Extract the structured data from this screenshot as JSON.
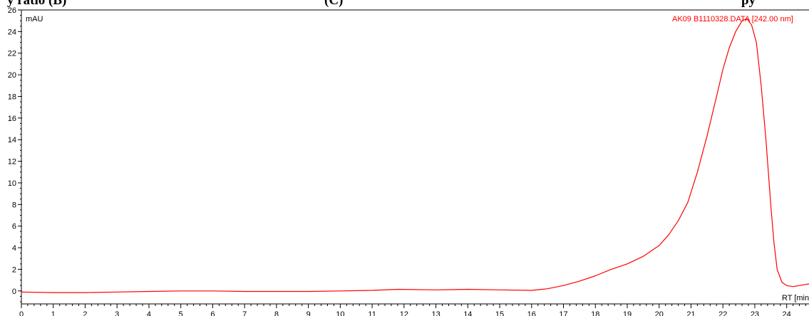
{
  "caption": {
    "left_text": "y ratio (B)",
    "mid_text": "(C)",
    "right_text": "py"
  },
  "chart_data": {
    "type": "line",
    "title": "",
    "xlabel": "RT [min]",
    "ylabel": "mAU",
    "xlim": [
      0,
      24.7
    ],
    "ylim": [
      -1.2,
      26
    ],
    "x_ticks": [
      0,
      1,
      2,
      3,
      4,
      5,
      6,
      7,
      8,
      9,
      10,
      11,
      12,
      13,
      14,
      15,
      16,
      17,
      18,
      19,
      20,
      21,
      22,
      23,
      24
    ],
    "y_ticks": [
      0,
      2,
      4,
      6,
      8,
      10,
      12,
      14,
      16,
      18,
      20,
      22,
      24,
      26
    ],
    "grid": false,
    "series": [
      {
        "name": "AK09 B1110328.DATA [242.00 nm]",
        "color": "#ff0000",
        "x": [
          0,
          1,
          2,
          3,
          4,
          5,
          6,
          7,
          8,
          9,
          10,
          11,
          11.8,
          13,
          14,
          15,
          16,
          16.5,
          17,
          17.5,
          18,
          18.5,
          19,
          19.5,
          20,
          20.3,
          20.6,
          20.9,
          21.2,
          21.5,
          21.8,
          22.0,
          22.2,
          22.4,
          22.6,
          22.75,
          22.9,
          23.05,
          23.2,
          23.35,
          23.5,
          23.6,
          23.7,
          23.85,
          24.0,
          24.2,
          24.4,
          24.6,
          24.7
        ],
        "y": [
          -0.1,
          -0.15,
          -0.15,
          -0.1,
          -0.05,
          0.0,
          0.0,
          -0.05,
          -0.05,
          -0.05,
          0.0,
          0.05,
          0.15,
          0.1,
          0.15,
          0.1,
          0.05,
          0.2,
          0.5,
          0.9,
          1.4,
          2.0,
          2.5,
          3.2,
          4.2,
          5.2,
          6.5,
          8.2,
          11.0,
          14.3,
          18.0,
          20.5,
          22.5,
          24.0,
          25.0,
          25.2,
          24.6,
          23.0,
          19.0,
          14.0,
          8.0,
          4.5,
          2.0,
          0.8,
          0.5,
          0.4,
          0.5,
          0.6,
          0.65
        ]
      }
    ]
  }
}
